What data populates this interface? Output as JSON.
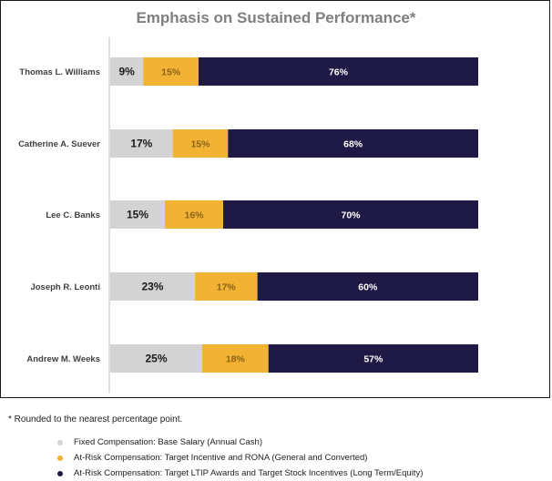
{
  "chart_data": {
    "type": "bar",
    "stacked": true,
    "orientation": "horizontal",
    "title": "Emphasis on Sustained Performance*",
    "categories": [
      "Thomas L. Williams",
      "Catherine A. Suever",
      "Lee C. Banks",
      "Joseph R. Leonti",
      "Andrew M. Weeks"
    ],
    "series": [
      {
        "name": "Fixed Compensation: Base Salary (Annual Cash)",
        "color": "#d3d3d3",
        "values": [
          9,
          17,
          15,
          23,
          25
        ],
        "labels": [
          "9%",
          "17%",
          "15%",
          "23%",
          "25%"
        ]
      },
      {
        "name": "At-Risk Compensation: Target Incentive and RONA (General and Converted)",
        "color": "#f2b233",
        "values": [
          15,
          15,
          16,
          17,
          18
        ],
        "labels": [
          "15%",
          "15%",
          "16%",
          "17%",
          "18%"
        ]
      },
      {
        "name": "At-Risk Compensation: Target LTIP Awards and Target Stock Incentives (Long Term/Equity)",
        "color": "#1f1946",
        "values": [
          76,
          68,
          70,
          60,
          57
        ],
        "labels": [
          "76%",
          "68%",
          "70%",
          "60%",
          "57%"
        ]
      }
    ],
    "xlim": [
      0,
      100
    ]
  },
  "footnote": "* Rounded to the nearest percentage point.",
  "colors": {
    "axis": "#bfbfbf",
    "title": "#7f7f7f",
    "border": "#1a1a1a"
  }
}
